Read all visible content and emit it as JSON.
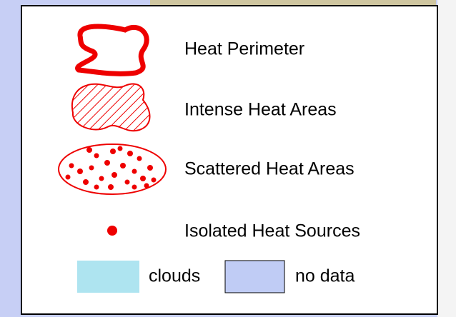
{
  "legend": {
    "items": [
      {
        "label": "Heat Perimeter"
      },
      {
        "label": "Intense Heat Areas"
      },
      {
        "label": "Scattered Heat Areas"
      },
      {
        "label": "Isolated Heat Sources"
      }
    ],
    "swatches": [
      {
        "label": "clouds"
      },
      {
        "label": "no data"
      }
    ]
  }
}
